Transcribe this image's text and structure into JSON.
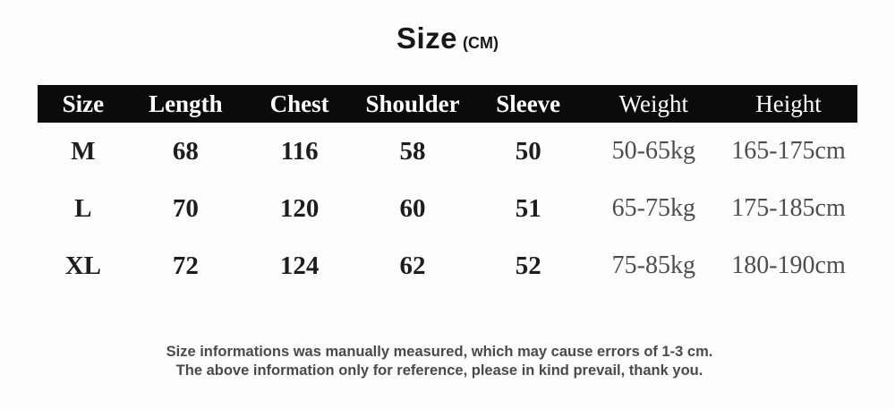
{
  "title": {
    "main": "Size",
    "unit": "(CM)"
  },
  "table": {
    "headers": [
      "Size",
      "Length",
      "Chest",
      "Shoulder",
      "Sleeve",
      "Weight",
      "Height"
    ],
    "rows": [
      [
        "M",
        "68",
        "116",
        "58",
        "50",
        "50-65kg",
        "165-175cm"
      ],
      [
        "L",
        "70",
        "120",
        "60",
        "51",
        "65-75kg",
        "175-185cm"
      ],
      [
        "XL",
        "72",
        "124",
        "62",
        "52",
        "75-85kg",
        "180-190cm"
      ]
    ]
  },
  "footer": {
    "line1": "Size informations was manually measured, which may cause errors of 1-3 cm.",
    "line2": "The above information only for reference, please in kind prevail, thank you."
  },
  "colors": {
    "header_bg": "#0b0b0b",
    "header_text": "#ffffff",
    "data_text": "#1d1d1d",
    "muted_text": "#4d4d4d",
    "footer_text": "#4a4a4a",
    "background": "#fdfdfd"
  }
}
